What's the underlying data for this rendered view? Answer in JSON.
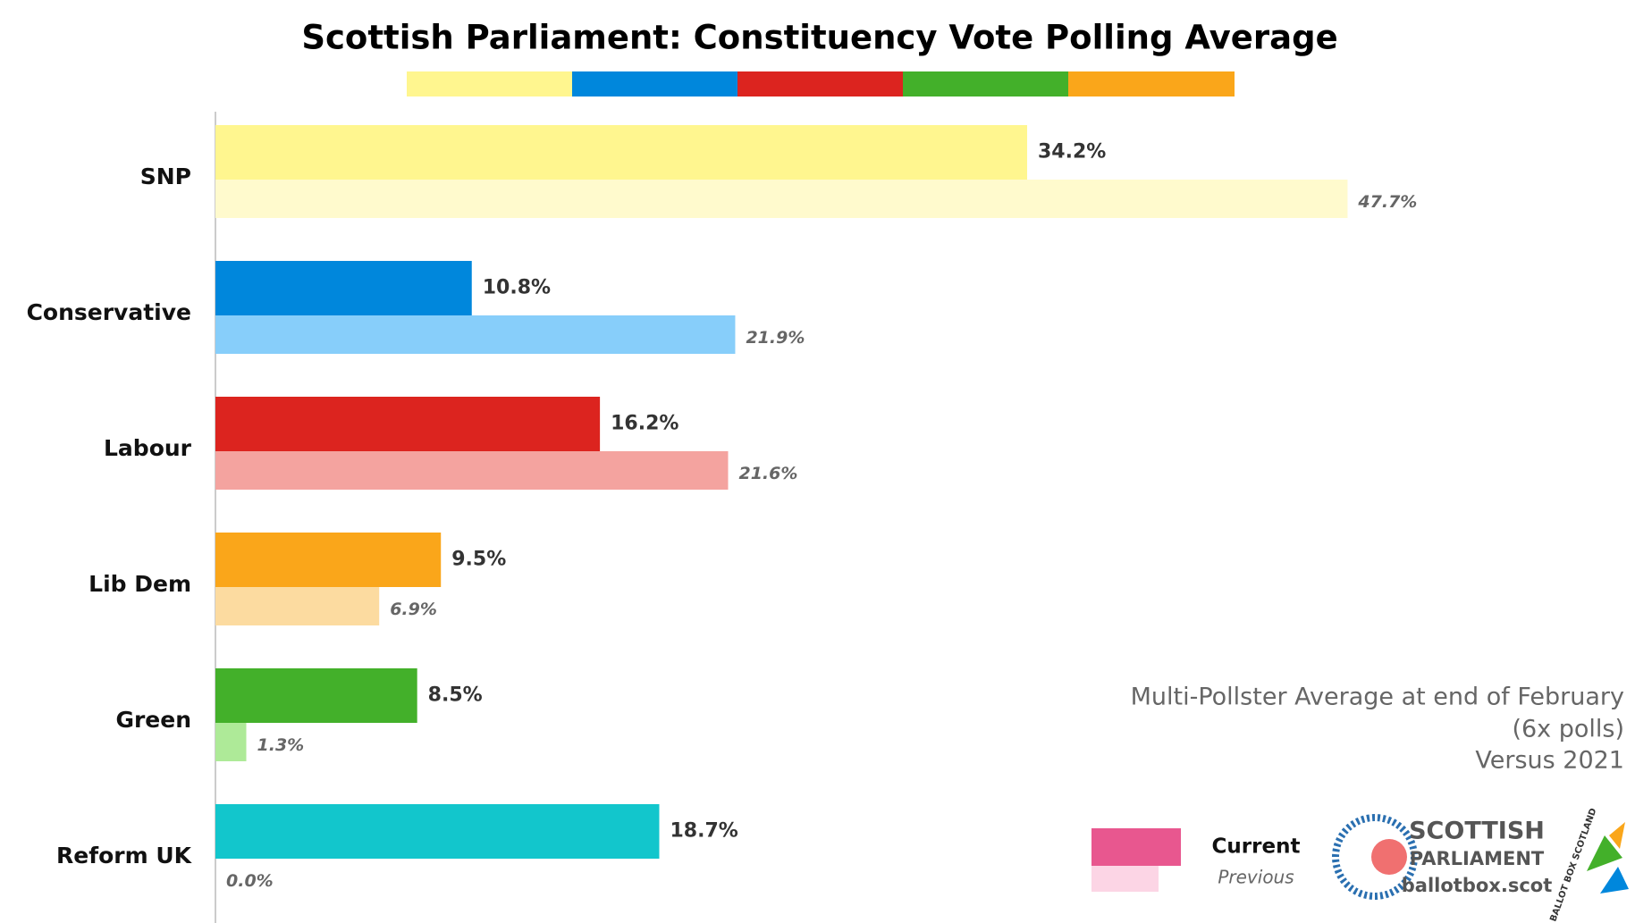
{
  "chart_data": {
    "type": "bar",
    "orientation": "horizontal",
    "title": "Scottish Parliament: Constituency Vote Polling Average",
    "categories": [
      "SNP",
      "Conservative",
      "Labour",
      "Lib Dem",
      "Green",
      "Reform UK"
    ],
    "series": [
      {
        "name": "Current",
        "color": "#e8578f",
        "colors": [
          "#fff68f",
          "#0087dc",
          "#dc241f",
          "#faa61a",
          "#43b02a",
          "#12c6cc"
        ],
        "values": [
          34.2,
          10.8,
          16.2,
          9.5,
          8.5,
          18.7
        ],
        "value_labels": [
          "34.2%",
          "10.8%",
          "16.2%",
          "9.5%",
          "8.5%",
          "18.7%"
        ]
      },
      {
        "name": "Previous",
        "color": "#fcd5e5",
        "colors": [
          "#fffacd",
          "#87cefa",
          "#f4a39f",
          "#fcdba0",
          "#aeea98",
          "#b2eef0"
        ],
        "values": [
          47.7,
          21.9,
          21.6,
          6.9,
          1.3,
          0.0
        ],
        "value_labels": [
          "47.7%",
          "21.9%",
          "21.6%",
          "6.9%",
          "1.3%",
          "0.0%"
        ]
      }
    ],
    "annotations": [
      "Multi-Pollster Average at end of February",
      "(6x polls)",
      "Versus 2021"
    ],
    "logo": {
      "line1": "SCOTTISH",
      "line2": "PARLIAMENT",
      "site": "ballotbox.scot",
      "badge": "BALLOT BOX SCOTLAND"
    }
  }
}
